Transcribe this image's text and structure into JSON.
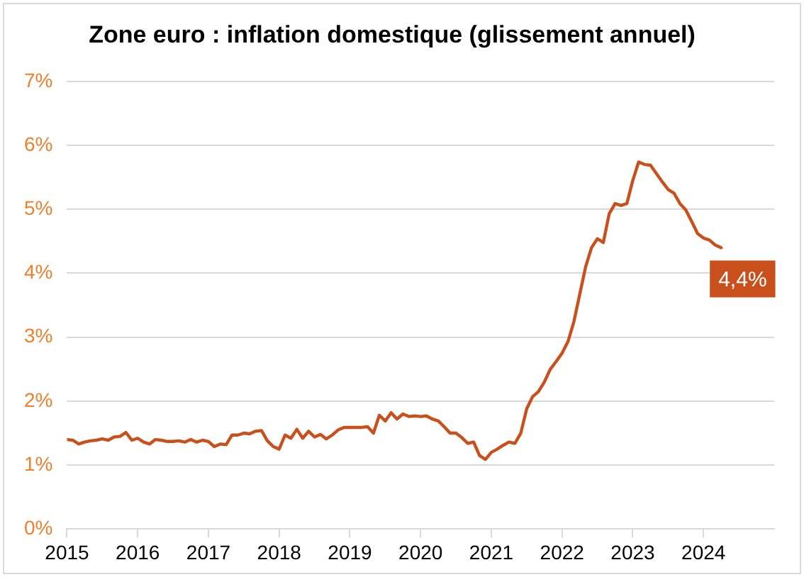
{
  "chart_data": {
    "type": "line",
    "title": "Zone euro : inflation domestique (glissement annuel)",
    "x": [
      "2015-01",
      "2015-02",
      "2015-03",
      "2015-04",
      "2015-05",
      "2015-06",
      "2015-07",
      "2015-08",
      "2015-09",
      "2015-10",
      "2015-11",
      "2015-12",
      "2016-01",
      "2016-02",
      "2016-03",
      "2016-04",
      "2016-05",
      "2016-06",
      "2016-07",
      "2016-08",
      "2016-09",
      "2016-10",
      "2016-11",
      "2016-12",
      "2017-01",
      "2017-02",
      "2017-03",
      "2017-04",
      "2017-05",
      "2017-06",
      "2017-07",
      "2017-08",
      "2017-09",
      "2017-10",
      "2017-11",
      "2017-12",
      "2018-01",
      "2018-02",
      "2018-03",
      "2018-04",
      "2018-05",
      "2018-06",
      "2018-07",
      "2018-08",
      "2018-09",
      "2018-10",
      "2018-11",
      "2018-12",
      "2019-01",
      "2019-02",
      "2019-03",
      "2019-04",
      "2019-05",
      "2019-06",
      "2019-07",
      "2019-08",
      "2019-09",
      "2019-10",
      "2019-11",
      "2019-12",
      "2020-01",
      "2020-02",
      "2020-03",
      "2020-04",
      "2020-05",
      "2020-06",
      "2020-07",
      "2020-08",
      "2020-09",
      "2020-10",
      "2020-11",
      "2020-12",
      "2021-01",
      "2021-02",
      "2021-03",
      "2021-04",
      "2021-05",
      "2021-06",
      "2021-07",
      "2021-08",
      "2021-09",
      "2021-10",
      "2021-11",
      "2021-12",
      "2022-01",
      "2022-02",
      "2022-03",
      "2022-04",
      "2022-05",
      "2022-06",
      "2022-07",
      "2022-08",
      "2022-09",
      "2022-10",
      "2022-11",
      "2022-12",
      "2023-01",
      "2023-02",
      "2023-03",
      "2023-04",
      "2023-05",
      "2023-06",
      "2023-07",
      "2023-08",
      "2023-09",
      "2023-10",
      "2023-11",
      "2023-12",
      "2024-01",
      "2024-02",
      "2024-03",
      "2024-04"
    ],
    "series": [
      {
        "color": "#c9501c",
        "values": [
          1.4,
          1.39,
          1.33,
          1.36,
          1.38,
          1.39,
          1.41,
          1.39,
          1.44,
          1.45,
          1.51,
          1.39,
          1.42,
          1.36,
          1.33,
          1.4,
          1.39,
          1.37,
          1.37,
          1.38,
          1.36,
          1.4,
          1.36,
          1.39,
          1.37,
          1.29,
          1.33,
          1.32,
          1.47,
          1.47,
          1.5,
          1.49,
          1.53,
          1.54,
          1.38,
          1.29,
          1.25,
          1.47,
          1.42,
          1.56,
          1.42,
          1.53,
          1.44,
          1.48,
          1.41,
          1.47,
          1.55,
          1.59,
          1.59,
          1.59,
          1.59,
          1.6,
          1.5,
          1.78,
          1.69,
          1.82,
          1.72,
          1.8,
          1.76,
          1.77,
          1.76,
          1.77,
          1.72,
          1.69,
          1.6,
          1.5,
          1.5,
          1.43,
          1.34,
          1.36,
          1.15,
          1.09,
          1.2,
          1.25,
          1.31,
          1.36,
          1.34,
          1.5,
          1.88,
          2.07,
          2.15,
          2.3,
          2.5,
          2.62,
          2.75,
          2.93,
          3.24,
          3.67,
          4.1,
          4.4,
          4.54,
          4.48,
          4.93,
          5.09,
          5.06,
          5.09,
          5.45,
          5.74,
          5.7,
          5.69,
          5.56,
          5.43,
          5.31,
          5.25,
          5.09,
          4.99,
          4.81,
          4.62,
          4.55,
          4.52,
          4.44,
          4.4
        ]
      }
    ],
    "xlim": [
      "2015-01",
      "2025-01"
    ],
    "xticks": [
      {
        "value": "2015",
        "label": "2015"
      },
      {
        "value": "2016",
        "label": "2016"
      },
      {
        "value": "2017",
        "label": "2017"
      },
      {
        "value": "2018",
        "label": "2018"
      },
      {
        "value": "2019",
        "label": "2019"
      },
      {
        "value": "2020",
        "label": "2020"
      },
      {
        "value": "2021",
        "label": "2021"
      },
      {
        "value": "2022",
        "label": "2022"
      },
      {
        "value": "2023",
        "label": "2023"
      },
      {
        "value": "2024",
        "label": "2024"
      }
    ],
    "ylim": [
      0,
      7
    ],
    "yticks": [
      {
        "value": 0,
        "label": "0%"
      },
      {
        "value": 1,
        "label": "1%"
      },
      {
        "value": 2,
        "label": "2%"
      },
      {
        "value": 3,
        "label": "3%"
      },
      {
        "value": 4,
        "label": "4%"
      },
      {
        "value": 5,
        "label": "5%"
      },
      {
        "value": 6,
        "label": "6%"
      },
      {
        "value": 7,
        "label": "7%"
      }
    ],
    "annotations": [
      {
        "text": "4,4%",
        "x": "2024-04",
        "y": 4.4
      }
    ],
    "grid": "y",
    "legend": false,
    "marker": "none",
    "line_style": "solid"
  }
}
